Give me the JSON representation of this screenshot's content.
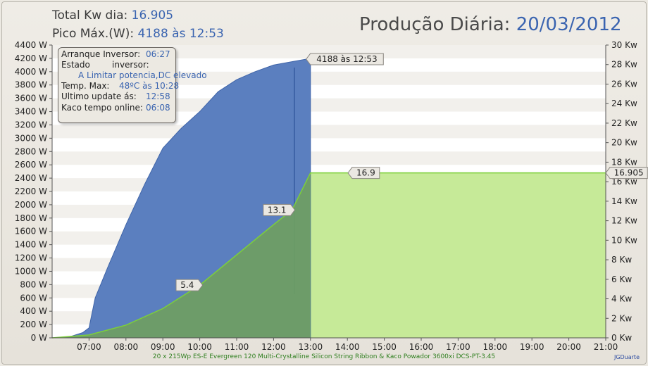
{
  "header": {
    "total_label": "Total Kw dia:",
    "total_value": "16.905",
    "peak_label": "Pico Máx.(W):",
    "peak_value": "4188 às 12:53",
    "title_label": "Produção Diária:",
    "title_date": "20/03/2012"
  },
  "info_box": {
    "start_label": "Arranque Inversor:",
    "start_value": "06:27",
    "state_label_1": "Estado",
    "state_label_2": "inversor:",
    "state_value": "A Limitar potencia,DC elevado",
    "temp_label": "Temp. Max:",
    "temp_value": "48ºC às 10:28",
    "update_label": "Ultimo update ás:",
    "update_value": "12:58",
    "online_label": "Kaco tempo online:",
    "online_value": "06:08"
  },
  "footer": "20 x 215Wp ES-E Evergreen 120 Multi-Crystalline Silicon String Ribbon & Kaco Powador 3600xi DCS-PT-3.45",
  "credit": "JGDuarte",
  "colors": {
    "power_fill": "#5b7fbf",
    "power_stroke": "#3f64a8",
    "energy_fill": "#6fa05f",
    "energy_line": "#7ccf3a",
    "future_fill": "#c6ea98"
  },
  "chart_data": {
    "type": "area",
    "x_ticks": [
      "07:00",
      "08:00",
      "09:00",
      "10:00",
      "11:00",
      "12:00",
      "13:00",
      "14:00",
      "15:00",
      "16:00",
      "17:00",
      "18:00",
      "19:00",
      "20:00",
      "21:00"
    ],
    "xlim": [
      "06:00",
      "21:00"
    ],
    "y_left_ticks": [
      "0 W",
      "200 W",
      "400 W",
      "600 W",
      "800 W",
      "1000 W",
      "1200 W",
      "1400 W",
      "1600 W",
      "1800 W",
      "2000 W",
      "2200 W",
      "2400 W",
      "2600 W",
      "2800 W",
      "3000 W",
      "3200 W",
      "3400 W",
      "3600 W",
      "3800 W",
      "4000 W",
      "4200 W",
      "4400 W"
    ],
    "y_left_lim": [
      0,
      4400
    ],
    "y_right_ticks": [
      "0 Kw",
      "2 Kw",
      "4 Kw",
      "6 Kw",
      "8 Kw",
      "10 Kw",
      "12 Kw",
      "14 Kw",
      "16 Kw",
      "18 Kw",
      "20 Kw",
      "22 Kw",
      "24 Kw",
      "26 Kw",
      "28 Kw",
      "30 Kw"
    ],
    "y_right_lim": [
      0,
      30
    ],
    "series": [
      {
        "axis": "left",
        "points": [
          [
            "06:00",
            0
          ],
          [
            "06:30",
            20
          ],
          [
            "06:50",
            80
          ],
          [
            "07:00",
            150
          ],
          [
            "07:10",
            600
          ],
          [
            "07:30",
            1050
          ],
          [
            "08:00",
            1700
          ],
          [
            "08:30",
            2300
          ],
          [
            "09:00",
            2850
          ],
          [
            "09:30",
            3150
          ],
          [
            "10:00",
            3400
          ],
          [
            "10:30",
            3700
          ],
          [
            "11:00",
            3880
          ],
          [
            "11:30",
            4000
          ],
          [
            "12:00",
            4100
          ],
          [
            "12:30",
            4150
          ],
          [
            "12:53",
            4188
          ],
          [
            "13:00",
            4150
          ]
        ]
      },
      {
        "axis": "right",
        "points": [
          [
            "06:00",
            0
          ],
          [
            "07:00",
            0.3
          ],
          [
            "08:00",
            1.3
          ],
          [
            "09:00",
            3.0
          ],
          [
            "10:00",
            5.4
          ],
          [
            "11:00",
            8.5
          ],
          [
            "12:00",
            11.6
          ],
          [
            "12:30",
            13.1
          ],
          [
            "13:00",
            16.9
          ]
        ]
      },
      {
        "axis": "right",
        "points": [
          [
            "13:00",
            16.9
          ],
          [
            "21:00",
            16.9
          ]
        ]
      }
    ],
    "annotations": [
      {
        "text": "4188 às 12:53",
        "x": "12:53",
        "y": 4188,
        "axis": "left"
      },
      {
        "text": "16.9",
        "x": "13:00",
        "y": 16.9,
        "axis": "right"
      },
      {
        "text": "13.1",
        "x": "12:30",
        "y": 13.1,
        "axis": "right"
      },
      {
        "text": "5.4",
        "x": "10:00",
        "y": 5.4,
        "axis": "right"
      },
      {
        "text": "16.905",
        "x": "21:00",
        "y": 16.9,
        "axis": "right"
      }
    ],
    "grid": true
  }
}
